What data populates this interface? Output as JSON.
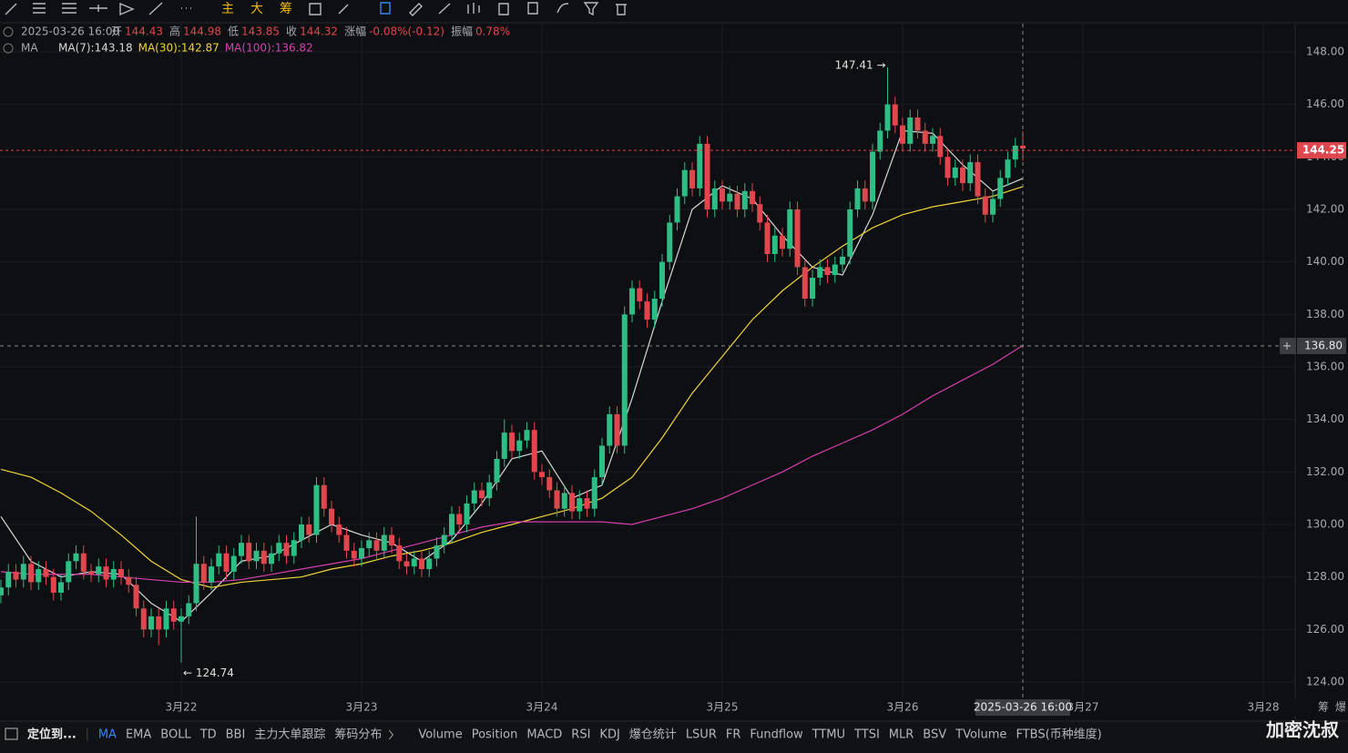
{
  "toolbar": {
    "buttons": [
      "主",
      "大",
      "筹"
    ]
  },
  "info": {
    "time": "2025-03-26 16:00",
    "items": [
      [
        "开",
        "144.43"
      ],
      [
        "高",
        "144.98"
      ],
      [
        "低",
        "143.85"
      ],
      [
        "收",
        "144.32"
      ],
      [
        "涨幅",
        "-0.08%(-0.12)"
      ],
      [
        "振幅",
        "0.78%"
      ]
    ]
  },
  "chart_data": {
    "type": "candlestick",
    "up_color": "#2ebd85",
    "down_color": "#e0464d",
    "grid": true,
    "legend_title": "MA",
    "xlim": [
      0,
      172
    ],
    "xticks": [
      {
        "value": 24,
        "label": "3月22"
      },
      {
        "value": 48,
        "label": "3月23"
      },
      {
        "value": 72,
        "label": "3月24"
      },
      {
        "value": 96,
        "label": "3月25"
      },
      {
        "value": 120,
        "label": "3月26"
      },
      {
        "value": 144,
        "label": "3月27"
      },
      {
        "value": 168,
        "label": "3月28"
      }
    ],
    "ylim": [
      123.4,
      149.2
    ],
    "yticks": [
      {
        "value": 124,
        "label": "124.00"
      },
      {
        "value": 126,
        "label": "126.00"
      },
      {
        "value": 128,
        "label": "128.00"
      },
      {
        "value": 130,
        "label": "130.00"
      },
      {
        "value": 132,
        "label": "132.00"
      },
      {
        "value": 134,
        "label": "134.00"
      },
      {
        "value": 136,
        "label": "136.00"
      },
      {
        "value": 138,
        "label": "138.00"
      },
      {
        "value": 140,
        "label": "140.00"
      },
      {
        "value": 142,
        "label": "142.00"
      },
      {
        "value": 144,
        "label": "144.00"
      },
      {
        "value": 146,
        "label": "146.00"
      },
      {
        "value": 148,
        "label": "148.00"
      }
    ],
    "ohlc": [
      [
        127.3,
        127.9,
        127.0,
        127.6
      ],
      [
        127.6,
        128.5,
        127.3,
        128.2
      ],
      [
        128.2,
        128.5,
        127.6,
        127.9
      ],
      [
        127.9,
        128.8,
        127.6,
        128.5
      ],
      [
        128.5,
        128.8,
        127.5,
        127.8
      ],
      [
        127.8,
        128.6,
        127.5,
        128.3
      ],
      [
        128.3,
        128.6,
        127.7,
        128.0
      ],
      [
        128.0,
        128.3,
        127.1,
        127.4
      ],
      [
        127.4,
        128.1,
        127.1,
        127.8
      ],
      [
        127.8,
        128.9,
        127.5,
        128.6
      ],
      [
        128.6,
        129.2,
        128.3,
        128.9
      ],
      [
        128.9,
        129.2,
        127.9,
        128.2
      ],
      [
        128.2,
        128.5,
        127.8,
        128.1
      ],
      [
        128.1,
        128.7,
        127.8,
        128.4
      ],
      [
        128.4,
        128.7,
        127.6,
        127.9
      ],
      [
        127.9,
        128.6,
        127.6,
        128.3
      ],
      [
        128.3,
        128.6,
        127.7,
        128.0
      ],
      [
        128.0,
        128.3,
        127.4,
        127.7
      ],
      [
        127.7,
        128.0,
        126.5,
        126.8
      ],
      [
        126.8,
        127.1,
        125.7,
        126.0
      ],
      [
        126.0,
        126.8,
        125.7,
        126.5
      ],
      [
        126.5,
        126.8,
        125.4,
        126.0
      ],
      [
        126.0,
        127.1,
        125.7,
        126.8
      ],
      [
        126.8,
        127.1,
        126.0,
        126.3
      ],
      [
        126.3,
        126.8,
        124.74,
        126.5
      ],
      [
        126.5,
        127.3,
        126.2,
        127.0
      ],
      [
        127.0,
        130.3,
        126.7,
        128.5
      ],
      [
        128.5,
        128.8,
        127.5,
        127.8
      ],
      [
        127.8,
        128.7,
        127.5,
        128.4
      ],
      [
        128.4,
        129.2,
        128.1,
        128.9
      ],
      [
        128.9,
        129.2,
        127.9,
        128.2
      ],
      [
        128.2,
        129.1,
        127.9,
        128.8
      ],
      [
        128.8,
        129.6,
        128.5,
        129.3
      ],
      [
        129.3,
        129.6,
        128.3,
        128.6
      ],
      [
        128.6,
        129.3,
        128.3,
        129.0
      ],
      [
        129.0,
        129.3,
        128.2,
        128.5
      ],
      [
        128.5,
        129.2,
        128.2,
        128.9
      ],
      [
        128.9,
        129.6,
        128.6,
        129.3
      ],
      [
        129.3,
        129.6,
        128.5,
        128.8
      ],
      [
        128.8,
        129.7,
        128.5,
        129.4
      ],
      [
        129.4,
        130.3,
        129.1,
        130.0
      ],
      [
        130.0,
        130.3,
        129.3,
        129.6
      ],
      [
        129.6,
        131.8,
        129.3,
        131.5
      ],
      [
        131.5,
        131.8,
        130.3,
        130.6
      ],
      [
        130.6,
        130.9,
        129.7,
        130.0
      ],
      [
        130.0,
        130.3,
        129.3,
        129.6
      ],
      [
        129.6,
        129.9,
        128.7,
        129.0
      ],
      [
        129.0,
        129.3,
        128.4,
        128.7
      ],
      [
        128.7,
        129.4,
        128.4,
        129.1
      ],
      [
        129.1,
        129.7,
        128.8,
        129.4
      ],
      [
        129.4,
        129.7,
        128.7,
        129.0
      ],
      [
        129.0,
        129.9,
        128.7,
        129.6
      ],
      [
        129.6,
        129.9,
        128.9,
        129.2
      ],
      [
        129.2,
        129.5,
        128.3,
        128.6
      ],
      [
        128.6,
        128.9,
        128.1,
        128.4
      ],
      [
        128.4,
        129.0,
        128.1,
        128.7
      ],
      [
        128.7,
        129.0,
        128.0,
        128.3
      ],
      [
        128.3,
        129.0,
        128.0,
        128.7
      ],
      [
        128.7,
        129.5,
        128.4,
        129.2
      ],
      [
        129.2,
        129.9,
        128.9,
        129.6
      ],
      [
        129.6,
        130.7,
        129.3,
        130.4
      ],
      [
        130.4,
        130.7,
        129.7,
        130.0
      ],
      [
        130.0,
        131.1,
        129.7,
        130.8
      ],
      [
        130.8,
        131.6,
        130.5,
        131.3
      ],
      [
        131.3,
        131.6,
        130.7,
        131.0
      ],
      [
        131.0,
        131.9,
        130.7,
        131.6
      ],
      [
        131.6,
        132.8,
        131.3,
        132.5
      ],
      [
        132.5,
        134.0,
        132.2,
        133.5
      ],
      [
        133.5,
        133.8,
        132.5,
        132.8
      ],
      [
        132.8,
        133.5,
        132.5,
        133.2
      ],
      [
        133.2,
        133.9,
        132.9,
        133.6
      ],
      [
        133.6,
        133.9,
        131.7,
        132.0
      ],
      [
        132.0,
        132.3,
        131.5,
        131.8
      ],
      [
        131.8,
        132.1,
        131.0,
        131.3
      ],
      [
        131.3,
        131.6,
        130.3,
        130.6
      ],
      [
        130.6,
        131.5,
        130.3,
        131.2
      ],
      [
        131.2,
        131.5,
        130.2,
        130.5
      ],
      [
        130.5,
        131.3,
        130.2,
        131.0
      ],
      [
        131.0,
        131.3,
        130.3,
        130.6
      ],
      [
        130.6,
        132.1,
        130.3,
        131.8
      ],
      [
        131.8,
        133.3,
        131.5,
        133.0
      ],
      [
        133.0,
        134.5,
        132.7,
        134.2
      ],
      [
        134.2,
        134.5,
        132.7,
        133.0
      ],
      [
        133.0,
        138.3,
        132.7,
        138.0
      ],
      [
        138.0,
        139.3,
        137.7,
        139.0
      ],
      [
        139.0,
        139.3,
        138.2,
        138.5
      ],
      [
        138.5,
        138.8,
        137.5,
        137.8
      ],
      [
        137.8,
        138.9,
        137.5,
        138.6
      ],
      [
        138.6,
        140.3,
        138.3,
        140.0
      ],
      [
        140.0,
        141.8,
        139.7,
        141.5
      ],
      [
        141.5,
        142.8,
        141.2,
        142.5
      ],
      [
        142.5,
        143.8,
        142.2,
        143.5
      ],
      [
        143.5,
        143.8,
        142.5,
        142.8
      ],
      [
        142.8,
        144.8,
        142.5,
        144.5
      ],
      [
        144.5,
        144.8,
        141.7,
        142.0
      ],
      [
        142.0,
        143.1,
        141.7,
        142.8
      ],
      [
        142.8,
        143.1,
        142.0,
        142.3
      ],
      [
        142.3,
        142.9,
        142.0,
        142.6
      ],
      [
        142.6,
        142.9,
        141.7,
        142.0
      ],
      [
        142.0,
        143.0,
        141.7,
        142.7
      ],
      [
        142.7,
        143.0,
        141.9,
        142.2
      ],
      [
        142.2,
        142.5,
        141.2,
        141.5
      ],
      [
        141.5,
        141.8,
        140.0,
        140.3
      ],
      [
        140.3,
        141.3,
        140.0,
        141.0
      ],
      [
        141.0,
        141.3,
        140.2,
        140.5
      ],
      [
        140.5,
        142.3,
        140.2,
        142.0
      ],
      [
        142.0,
        142.3,
        139.5,
        139.8
      ],
      [
        139.8,
        140.1,
        138.3,
        138.6
      ],
      [
        138.6,
        139.7,
        138.3,
        139.4
      ],
      [
        139.4,
        140.1,
        139.1,
        139.8
      ],
      [
        139.8,
        140.1,
        139.2,
        139.5
      ],
      [
        139.5,
        140.2,
        139.2,
        139.9
      ],
      [
        139.9,
        140.5,
        139.6,
        140.2
      ],
      [
        140.2,
        142.3,
        139.9,
        142.0
      ],
      [
        142.0,
        143.1,
        141.7,
        142.8
      ],
      [
        142.8,
        143.1,
        142.0,
        142.3
      ],
      [
        142.3,
        144.5,
        142.0,
        144.2
      ],
      [
        144.2,
        145.3,
        143.9,
        145.0
      ],
      [
        145.0,
        147.41,
        144.7,
        146.0
      ],
      [
        146.0,
        146.3,
        144.9,
        145.2
      ],
      [
        145.2,
        145.5,
        144.2,
        144.5
      ],
      [
        144.5,
        145.8,
        144.2,
        145.5
      ],
      [
        145.5,
        145.8,
        144.7,
        145.0
      ],
      [
        145.0,
        145.3,
        144.2,
        144.5
      ],
      [
        144.5,
        145.1,
        144.2,
        144.8
      ],
      [
        144.8,
        145.1,
        143.7,
        144.0
      ],
      [
        144.0,
        144.3,
        142.9,
        143.2
      ],
      [
        143.2,
        143.9,
        142.9,
        143.6
      ],
      [
        143.6,
        143.9,
        142.7,
        143.0
      ],
      [
        143.0,
        144.1,
        142.7,
        143.8
      ],
      [
        143.8,
        144.1,
        142.2,
        142.5
      ],
      [
        142.5,
        142.8,
        141.5,
        141.8
      ],
      [
        141.8,
        142.7,
        141.5,
        142.4
      ],
      [
        142.4,
        143.5,
        142.1,
        143.2
      ],
      [
        143.2,
        144.2,
        142.9,
        143.9
      ],
      [
        143.9,
        144.73,
        143.6,
        144.43
      ],
      [
        144.43,
        144.98,
        143.85,
        144.32
      ]
    ],
    "series": [
      {
        "name": "MA(7):143.18",
        "color": "#d8d8d8",
        "x": [
          0,
          4,
          8,
          12,
          16,
          20,
          24,
          28,
          32,
          36,
          40,
          44,
          48,
          52,
          56,
          60,
          64,
          68,
          72,
          76,
          80,
          84,
          88,
          92,
          96,
          100,
          104,
          108,
          112,
          116,
          120,
          124,
          128,
          132,
          136
        ],
        "values": [
          130.3,
          128.6,
          128.0,
          128.2,
          128.1,
          127.0,
          126.3,
          127.4,
          128.6,
          128.8,
          129.4,
          130.0,
          129.6,
          129.3,
          128.6,
          129.4,
          130.8,
          132.5,
          132.8,
          131.0,
          131.5,
          134.8,
          138.5,
          142.0,
          142.9,
          142.4,
          141.0,
          139.8,
          139.5,
          141.8,
          145.0,
          144.9,
          143.7,
          142.7,
          143.18
        ]
      },
      {
        "name": "MA(30):142.87",
        "color": "#f0d43a",
        "x": [
          0,
          4,
          8,
          12,
          16,
          20,
          24,
          28,
          32,
          36,
          40,
          44,
          48,
          52,
          56,
          60,
          64,
          68,
          72,
          76,
          80,
          84,
          88,
          92,
          96,
          100,
          104,
          108,
          112,
          116,
          120,
          124,
          128,
          132,
          136
        ],
        "values": [
          132.1,
          131.8,
          131.2,
          130.5,
          129.6,
          128.6,
          127.9,
          127.6,
          127.8,
          127.9,
          128.0,
          128.3,
          128.5,
          128.8,
          129.0,
          129.3,
          129.7,
          130.0,
          130.3,
          130.6,
          131.0,
          131.8,
          133.3,
          135.0,
          136.4,
          137.8,
          138.9,
          139.8,
          140.6,
          141.3,
          141.8,
          142.1,
          142.3,
          142.5,
          142.87
        ]
      },
      {
        "name": "MA(100):136.82",
        "color": "#d63fb0",
        "x": [
          0,
          4,
          8,
          12,
          16,
          20,
          24,
          28,
          32,
          36,
          40,
          44,
          48,
          52,
          56,
          60,
          64,
          68,
          72,
          76,
          80,
          84,
          88,
          92,
          96,
          100,
          104,
          108,
          112,
          116,
          120,
          124,
          128,
          132,
          136
        ],
        "values": [
          128.2,
          128.1,
          128.1,
          128.1,
          128.0,
          127.9,
          127.8,
          127.8,
          127.9,
          128.1,
          128.3,
          128.5,
          128.7,
          129.0,
          129.3,
          129.6,
          129.9,
          130.1,
          130.1,
          130.1,
          130.1,
          130.0,
          130.3,
          130.6,
          131.0,
          131.5,
          132.0,
          132.6,
          133.1,
          133.6,
          134.2,
          134.9,
          135.5,
          136.1,
          136.82
        ]
      }
    ],
    "annotations": [
      {
        "text": "147.41 →",
        "x": 118,
        "y": 147.41
      },
      {
        "text": "← 124.74",
        "x": 24,
        "y": 124.74
      }
    ],
    "last_price": {
      "value": 144.25,
      "label": "144.25"
    },
    "crosshair": {
      "x": 136,
      "x_label": "2025-03-26 16:00",
      "y": {
        "value": 136.8,
        "label": "136.80"
      }
    }
  },
  "bottom_tabs": [
    "定位到...",
    "MA",
    "EMA",
    "BOLL",
    "TD",
    "BBI",
    "主力大单跟踪",
    "筹码分布",
    "Volume",
    "Position",
    "MACD",
    "RSI",
    "KDJ",
    "爆仓统计",
    "LSUR",
    "FR",
    "Fundflow",
    "TTMU",
    "TTSI",
    "MLR",
    "BSV",
    "TVolume",
    "FTBS(币种维度)"
  ],
  "corner": [
    "筹",
    "爆"
  ],
  "watermark": "加密沈叔"
}
